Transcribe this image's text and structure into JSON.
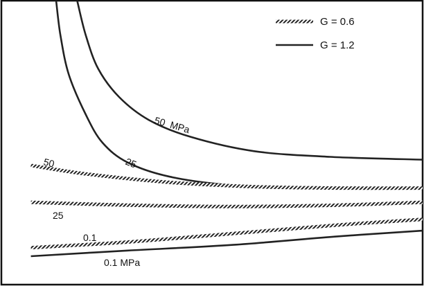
{
  "chart_data": {
    "type": "line",
    "title": "",
    "xlabel": "",
    "ylabel": "",
    "grid": false,
    "legend_placement": "top-right",
    "legend": [
      {
        "label": "G = 0.6",
        "style": "hatched"
      },
      {
        "label": "G = 1.2",
        "style": "solid"
      }
    ],
    "series": [
      {
        "group": "G = 1.2",
        "style": "solid",
        "curve_label": "50  MPa",
        "points": [
          [
            0.18,
            1.0
          ],
          [
            0.2,
            0.88
          ],
          [
            0.23,
            0.76
          ],
          [
            0.28,
            0.66
          ],
          [
            0.35,
            0.58
          ],
          [
            0.45,
            0.52
          ],
          [
            0.6,
            0.47
          ],
          [
            0.78,
            0.45
          ],
          [
            1.0,
            0.44
          ]
        ]
      },
      {
        "group": "G = 1.2",
        "style": "solid",
        "curve_label": "25",
        "points": [
          [
            0.13,
            1.0
          ],
          [
            0.14,
            0.88
          ],
          [
            0.16,
            0.74
          ],
          [
            0.2,
            0.6
          ],
          [
            0.24,
            0.5
          ],
          [
            0.3,
            0.43
          ],
          [
            0.4,
            0.38
          ],
          [
            0.55,
            0.35
          ],
          [
            0.75,
            0.34
          ]
        ]
      },
      {
        "group": "G = 1.2",
        "style": "solid",
        "curve_label": "0.1 MPa",
        "points": [
          [
            0.07,
            0.1
          ],
          [
            0.3,
            0.12
          ],
          [
            0.55,
            0.14
          ],
          [
            0.8,
            0.17
          ],
          [
            1.0,
            0.19
          ]
        ]
      },
      {
        "group": "G = 0.6",
        "style": "hatched",
        "curve_label": "50",
        "points": [
          [
            0.07,
            0.42
          ],
          [
            0.2,
            0.39
          ],
          [
            0.4,
            0.36
          ],
          [
            0.6,
            0.345
          ],
          [
            0.8,
            0.34
          ],
          [
            1.0,
            0.34
          ]
        ]
      },
      {
        "group": "G = 0.6",
        "style": "hatched",
        "curve_label": "25",
        "points": [
          [
            0.07,
            0.29
          ],
          [
            0.3,
            0.28
          ],
          [
            0.55,
            0.275
          ],
          [
            0.8,
            0.28
          ],
          [
            1.0,
            0.29
          ]
        ]
      },
      {
        "group": "G = 0.6",
        "style": "hatched",
        "curve_label": "0.1",
        "points": [
          [
            0.07,
            0.13
          ],
          [
            0.3,
            0.15
          ],
          [
            0.55,
            0.18
          ],
          [
            0.8,
            0.21
          ],
          [
            1.0,
            0.23
          ]
        ]
      }
    ]
  }
}
